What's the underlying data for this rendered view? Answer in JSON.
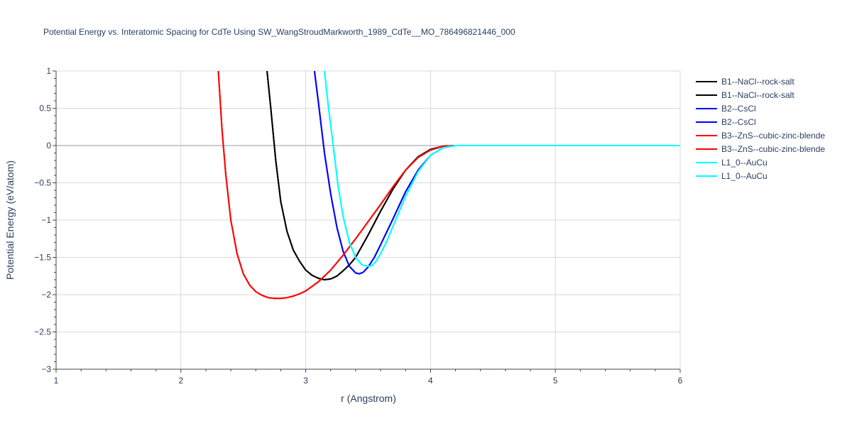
{
  "chart_data": {
    "type": "line",
    "title": "Potential Energy vs. Interatomic Spacing for CdTe Using SW_WangStroudMarkworth_1989_CdTe__MO_786496821446_000",
    "xlabel": "r (Angstrom)",
    "ylabel": "Potential Energy (eV/atom)",
    "xlim": [
      1,
      6
    ],
    "ylim": [
      -3,
      1
    ],
    "xticks": [
      1,
      2,
      3,
      4,
      5,
      6
    ],
    "yticks": [
      1,
      0.5,
      0,
      -0.5,
      -1,
      -1.5,
      -2,
      -2.5,
      -3
    ],
    "ytick_labels": [
      "1",
      "0.5",
      "0",
      "−0.5",
      "−1",
      "−1.5",
      "−2",
      "−2.5",
      "−3"
    ],
    "grid": true,
    "legend_position": "top-right outside",
    "series": [
      {
        "name": "B1--NaCl--rock-salt",
        "color": "#000000",
        "x": [
          2.69,
          2.72,
          2.76,
          2.8,
          2.85,
          2.9,
          2.95,
          3.0,
          3.05,
          3.1,
          3.15,
          3.2,
          3.25,
          3.3,
          3.35,
          3.4,
          3.5,
          3.6,
          3.7,
          3.8,
          3.9,
          4.0,
          4.1,
          4.2,
          4.3,
          4.4,
          5.0,
          6.0
        ],
        "y": [
          1.0,
          0.5,
          -0.2,
          -0.75,
          -1.15,
          -1.4,
          -1.55,
          -1.67,
          -1.74,
          -1.78,
          -1.8,
          -1.79,
          -1.75,
          -1.68,
          -1.6,
          -1.5,
          -1.2,
          -0.88,
          -0.58,
          -0.33,
          -0.15,
          -0.05,
          -0.01,
          0.0,
          0.0,
          0.0,
          0.0,
          0.0
        ]
      },
      {
        "name": "B1--NaCl--rock-salt",
        "color": "#000000",
        "x": [
          2.69,
          2.72,
          2.76,
          2.8,
          2.85,
          2.9,
          2.95,
          3.0,
          3.05,
          3.1,
          3.15,
          3.2,
          3.25,
          3.3,
          3.35,
          3.4,
          3.5,
          3.6,
          3.7,
          3.8,
          3.9,
          4.0,
          4.1,
          4.2,
          4.3,
          4.4,
          5.0,
          6.0
        ],
        "y": [
          1.0,
          0.5,
          -0.2,
          -0.75,
          -1.15,
          -1.4,
          -1.55,
          -1.67,
          -1.74,
          -1.78,
          -1.8,
          -1.79,
          -1.75,
          -1.68,
          -1.6,
          -1.5,
          -1.2,
          -0.88,
          -0.58,
          -0.33,
          -0.15,
          -0.05,
          -0.01,
          0.0,
          0.0,
          0.0,
          0.0,
          0.0
        ]
      },
      {
        "name": "B2--CsCl",
        "color": "#0000ff",
        "x": [
          3.07,
          3.1,
          3.15,
          3.2,
          3.25,
          3.3,
          3.35,
          3.4,
          3.43,
          3.46,
          3.5,
          3.55,
          3.6,
          3.7,
          3.8,
          3.9,
          4.0,
          4.1,
          4.2,
          4.3,
          4.4,
          5.0,
          6.0
        ],
        "y": [
          1.0,
          0.6,
          -0.1,
          -0.65,
          -1.1,
          -1.42,
          -1.62,
          -1.71,
          -1.72,
          -1.7,
          -1.63,
          -1.5,
          -1.33,
          -0.98,
          -0.62,
          -0.33,
          -0.13,
          -0.03,
          0.0,
          0.0,
          0.0,
          0.0,
          0.0
        ]
      },
      {
        "name": "B2--CsCl",
        "color": "#0000ff",
        "x": [
          3.07,
          3.1,
          3.15,
          3.2,
          3.25,
          3.3,
          3.35,
          3.4,
          3.43,
          3.46,
          3.5,
          3.55,
          3.6,
          3.7,
          3.8,
          3.9,
          4.0,
          4.1,
          4.2,
          4.3,
          4.4,
          5.0,
          6.0
        ],
        "y": [
          1.0,
          0.6,
          -0.1,
          -0.65,
          -1.1,
          -1.42,
          -1.62,
          -1.71,
          -1.72,
          -1.7,
          -1.63,
          -1.5,
          -1.33,
          -0.98,
          -0.62,
          -0.33,
          -0.13,
          -0.03,
          0.0,
          0.0,
          0.0,
          0.0,
          0.0
        ]
      },
      {
        "name": "B3--ZnS--cubic-zinc-blende",
        "color": "#ff0000",
        "x": [
          2.3,
          2.33,
          2.36,
          2.4,
          2.45,
          2.5,
          2.55,
          2.6,
          2.65,
          2.7,
          2.75,
          2.8,
          2.85,
          2.9,
          2.95,
          3.0,
          3.1,
          3.2,
          3.3,
          3.4,
          3.5,
          3.6,
          3.7,
          3.8,
          3.9,
          4.0,
          4.1,
          4.2,
          4.3,
          4.4,
          5.0,
          6.0
        ],
        "y": [
          1.0,
          0.2,
          -0.4,
          -1.0,
          -1.45,
          -1.72,
          -1.87,
          -1.96,
          -2.01,
          -2.04,
          -2.05,
          -2.05,
          -2.04,
          -2.02,
          -1.99,
          -1.95,
          -1.83,
          -1.67,
          -1.47,
          -1.25,
          -1.02,
          -0.79,
          -0.55,
          -0.33,
          -0.16,
          -0.06,
          -0.01,
          0.0,
          0.0,
          0.0,
          0.0,
          0.0
        ]
      },
      {
        "name": "B3--ZnS--cubic-zinc-blende",
        "color": "#ff0000",
        "x": [
          2.3,
          2.33,
          2.36,
          2.4,
          2.45,
          2.5,
          2.55,
          2.6,
          2.65,
          2.7,
          2.75,
          2.8,
          2.85,
          2.9,
          2.95,
          3.0,
          3.1,
          3.2,
          3.3,
          3.4,
          3.5,
          3.6,
          3.7,
          3.8,
          3.9,
          4.0,
          4.1,
          4.2,
          4.3,
          4.4,
          5.0,
          6.0
        ],
        "y": [
          1.0,
          0.2,
          -0.4,
          -1.0,
          -1.45,
          -1.72,
          -1.87,
          -1.96,
          -2.01,
          -2.04,
          -2.05,
          -2.05,
          -2.04,
          -2.02,
          -1.99,
          -1.95,
          -1.83,
          -1.67,
          -1.47,
          -1.25,
          -1.02,
          -0.79,
          -0.55,
          -0.33,
          -0.16,
          -0.06,
          -0.01,
          0.0,
          0.0,
          0.0,
          0.0,
          0.0
        ]
      },
      {
        "name": "L1_0--AuCu",
        "color": "#00ffff",
        "x": [
          3.15,
          3.18,
          3.22,
          3.26,
          3.3,
          3.35,
          3.4,
          3.45,
          3.5,
          3.53,
          3.56,
          3.6,
          3.65,
          3.7,
          3.8,
          3.9,
          4.0,
          4.1,
          4.2,
          4.3,
          4.4,
          5.0,
          6.0
        ],
        "y": [
          1.0,
          0.55,
          0.0,
          -0.55,
          -0.95,
          -1.3,
          -1.5,
          -1.6,
          -1.62,
          -1.61,
          -1.56,
          -1.45,
          -1.28,
          -1.08,
          -0.68,
          -0.35,
          -0.13,
          -0.03,
          0.0,
          0.0,
          0.0,
          0.0,
          0.0
        ]
      },
      {
        "name": "L1_0--AuCu",
        "color": "#00ffff",
        "x": [
          3.15,
          3.18,
          3.22,
          3.26,
          3.3,
          3.35,
          3.4,
          3.45,
          3.5,
          3.53,
          3.56,
          3.6,
          3.65,
          3.7,
          3.8,
          3.9,
          4.0,
          4.1,
          4.2,
          4.3,
          4.4,
          5.0,
          6.0
        ],
        "y": [
          1.0,
          0.55,
          0.0,
          -0.55,
          -0.95,
          -1.3,
          -1.5,
          -1.6,
          -1.62,
          -1.61,
          -1.56,
          -1.45,
          -1.28,
          -1.08,
          -0.68,
          -0.35,
          -0.13,
          -0.03,
          0.0,
          0.0,
          0.0,
          0.0,
          0.0
        ]
      }
    ]
  }
}
